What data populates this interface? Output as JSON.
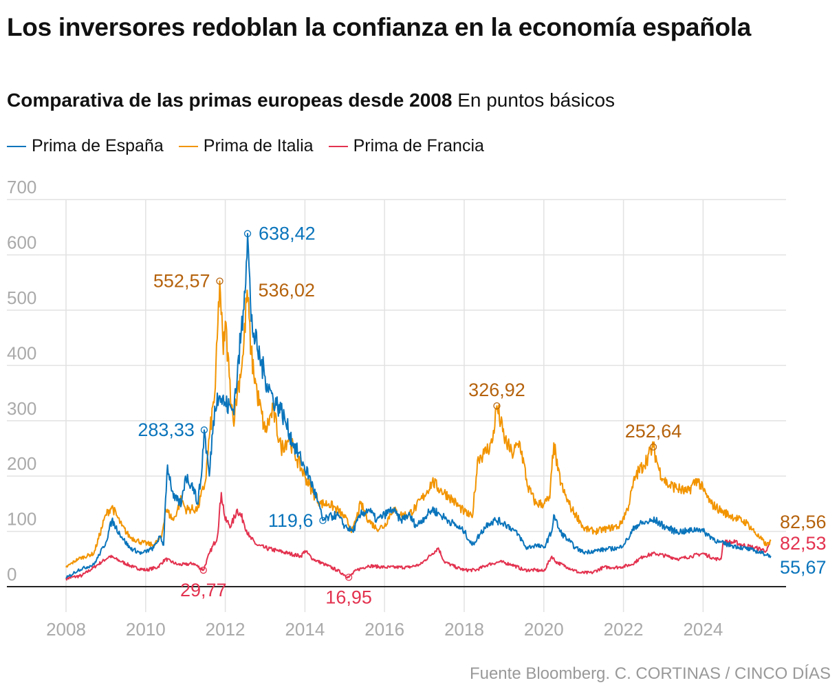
{
  "title": "Los inversores redoblan la confianza en la economía española",
  "subtitle_bold": "Comparativa de las primas europeas desde 2008",
  "subtitle_unit": "En puntos básicos",
  "source": "Fuente Bloomberg. C. CORTINAS / CINCO DÍAS",
  "chart_data": {
    "type": "line",
    "title": "Los inversores redoblan la confianza en la economía española",
    "ylabel": "En puntos básicos",
    "ylim": [
      0,
      700
    ],
    "xlim": [
      2008,
      2026
    ],
    "yticks": [
      0,
      100,
      200,
      300,
      400,
      500,
      600,
      700
    ],
    "xticks": [
      2008,
      2010,
      2012,
      2014,
      2016,
      2018,
      2020,
      2022,
      2024
    ],
    "grid": true,
    "legend": "top-left",
    "series": [
      {
        "name": "Prima de España",
        "color": "#0a74bb",
        "label_color": "#0a74bb",
        "x": [
          2008.0,
          2008.3,
          2008.7,
          2009.0,
          2009.15,
          2009.4,
          2009.6,
          2009.9,
          2010.2,
          2010.35,
          2010.45,
          2010.5,
          2010.55,
          2010.7,
          2010.9,
          2011.0,
          2011.2,
          2011.3,
          2011.4,
          2011.47,
          2011.6,
          2011.7,
          2011.8,
          2011.9,
          2012.0,
          2012.2,
          2012.3,
          2012.45,
          2012.56,
          2012.65,
          2012.8,
          2013.0,
          2013.2,
          2013.4,
          2013.5,
          2013.7,
          2013.9,
          2014.1,
          2014.3,
          2014.45,
          2014.6,
          2014.8,
          2015.0,
          2015.2,
          2015.4,
          2015.6,
          2015.8,
          2016.0,
          2016.2,
          2016.4,
          2016.6,
          2016.8,
          2017.0,
          2017.2,
          2017.4,
          2017.6,
          2017.8,
          2018.0,
          2018.2,
          2018.4,
          2018.6,
          2018.8,
          2019.0,
          2019.2,
          2019.4,
          2019.55,
          2019.8,
          2020.0,
          2020.2,
          2020.25,
          2020.4,
          2020.6,
          2020.8,
          2021.0,
          2021.3,
          2021.6,
          2021.9,
          2022.1,
          2022.3,
          2022.5,
          2022.8,
          2023.0,
          2023.3,
          2023.6,
          2023.9,
          2024.1,
          2024.4,
          2024.7,
          2025.0,
          2025.3,
          2025.7
        ],
        "y": [
          15,
          30,
          40,
          80,
          120,
          90,
          70,
          60,
          70,
          90,
          75,
          160,
          220,
          160,
          150,
          200,
          180,
          150,
          200,
          283.33,
          200,
          300,
          350,
          340,
          330,
          320,
          380,
          500,
          638.42,
          480,
          430,
          380,
          340,
          320,
          300,
          260,
          230,
          200,
          160,
          119.6,
          125,
          130,
          110,
          100,
          130,
          140,
          120,
          130,
          140,
          120,
          130,
          110,
          125,
          140,
          130,
          120,
          110,
          100,
          75,
          95,
          115,
          120,
          115,
          105,
          90,
          70,
          75,
          70,
          100,
          130,
          100,
          85,
          70,
          62,
          65,
          68,
          70,
          85,
          110,
          115,
          120,
          110,
          100,
          100,
          105,
          95,
          80,
          75,
          70,
          65,
          55.67
        ]
      },
      {
        "name": "Prima de Italia",
        "color": "#f29400",
        "label_color": "#b5620c",
        "x": [
          2008.0,
          2008.3,
          2008.7,
          2009.0,
          2009.15,
          2009.4,
          2009.6,
          2009.9,
          2010.2,
          2010.4,
          2010.5,
          2010.7,
          2010.9,
          2011.0,
          2011.3,
          2011.5,
          2011.6,
          2011.75,
          2011.86,
          2011.95,
          2012.0,
          2012.1,
          2012.2,
          2012.3,
          2012.45,
          2012.55,
          2012.65,
          2012.8,
          2013.0,
          2013.2,
          2013.4,
          2013.6,
          2013.8,
          2014.0,
          2014.2,
          2014.4,
          2014.6,
          2014.8,
          2015.0,
          2015.2,
          2015.4,
          2015.6,
          2015.8,
          2016.0,
          2016.2,
          2016.4,
          2016.6,
          2016.8,
          2017.0,
          2017.2,
          2017.4,
          2017.6,
          2017.8,
          2018.0,
          2018.2,
          2018.35,
          2018.5,
          2018.7,
          2018.82,
          2019.0,
          2019.2,
          2019.4,
          2019.6,
          2019.8,
          2020.0,
          2020.15,
          2020.25,
          2020.35,
          2020.5,
          2020.7,
          2020.9,
          2021.0,
          2021.3,
          2021.6,
          2021.9,
          2022.1,
          2022.3,
          2022.5,
          2022.75,
          2022.9,
          2023.1,
          2023.3,
          2023.6,
          2023.85,
          2024.0,
          2024.2,
          2024.5,
          2024.8,
          2025.1,
          2025.4,
          2025.6,
          2025.7
        ],
        "y": [
          35,
          50,
          60,
          130,
          145,
          110,
          90,
          80,
          75,
          90,
          140,
          120,
          160,
          140,
          140,
          190,
          270,
          360,
          552.57,
          420,
          480,
          380,
          300,
          350,
          420,
          536.02,
          420,
          350,
          280,
          320,
          250,
          270,
          230,
          200,
          170,
          150,
          150,
          140,
          125,
          100,
          150,
          120,
          105,
          110,
          140,
          130,
          130,
          145,
          165,
          190,
          175,
          165,
          150,
          135,
          125,
          235,
          240,
          260,
          326.92,
          270,
          240,
          260,
          180,
          150,
          150,
          160,
          260,
          210,
          170,
          140,
          120,
          105,
          100,
          105,
          110,
          140,
          200,
          220,
          252.64,
          210,
          185,
          180,
          170,
          195,
          175,
          150,
          135,
          125,
          115,
          90,
          75,
          82.56
        ]
      },
      {
        "name": "Prima de Francia",
        "color": "#e3324f",
        "label_color": "#e3324f",
        "x": [
          2008.0,
          2008.4,
          2008.8,
          2009.1,
          2009.4,
          2009.7,
          2010.0,
          2010.3,
          2010.5,
          2010.8,
          2011.0,
          2011.2,
          2011.45,
          2011.6,
          2011.8,
          2011.9,
          2012.0,
          2012.15,
          2012.3,
          2012.45,
          2012.6,
          2012.8,
          2013.0,
          2013.3,
          2013.6,
          2013.9,
          2014.0,
          2014.2,
          2014.5,
          2014.8,
          2015.1,
          2015.3,
          2015.6,
          2016.0,
          2016.3,
          2016.6,
          2016.9,
          2017.2,
          2017.35,
          2017.5,
          2017.8,
          2018.0,
          2018.3,
          2018.6,
          2018.9,
          2019.2,
          2019.5,
          2019.8,
          2020.0,
          2020.2,
          2020.3,
          2020.6,
          2020.9,
          2021.2,
          2021.5,
          2021.9,
          2022.2,
          2022.5,
          2022.8,
          2023.1,
          2023.4,
          2023.7,
          2024.0,
          2024.3,
          2024.45,
          2024.5,
          2024.8,
          2025.0,
          2025.3,
          2025.6,
          2025.7
        ],
        "y": [
          15,
          20,
          40,
          55,
          45,
          35,
          30,
          35,
          50,
          40,
          40,
          42,
          29.77,
          60,
          90,
          170,
          120,
          110,
          140,
          120,
          90,
          75,
          70,
          65,
          60,
          55,
          65,
          50,
          40,
          30,
          16.95,
          30,
          38,
          35,
          35,
          35,
          40,
          60,
          70,
          45,
          35,
          30,
          30,
          40,
          45,
          40,
          30,
          30,
          28,
          55,
          45,
          35,
          25,
          25,
          35,
          35,
          40,
          55,
          60,
          55,
          50,
          55,
          60,
          50,
          50,
          80,
          80,
          75,
          70,
          65,
          82.53
        ]
      }
    ],
    "annotations": [
      {
        "series": 0,
        "x": 2011.47,
        "y": 283.33,
        "text": "283,33",
        "place": "left",
        "marker": true
      },
      {
        "series": 0,
        "x": 2012.56,
        "y": 638.42,
        "text": "638,42",
        "place": "right",
        "marker": true
      },
      {
        "series": 0,
        "x": 2014.45,
        "y": 119.6,
        "text": "119,6",
        "place": "left",
        "marker": true
      },
      {
        "series": 1,
        "x": 2011.86,
        "y": 552.57,
        "text": "552,57",
        "place": "left",
        "marker": true
      },
      {
        "series": 1,
        "x": 2012.55,
        "y": 536.02,
        "text": "536,02",
        "place": "right",
        "marker": false
      },
      {
        "series": 1,
        "x": 2018.82,
        "y": 326.92,
        "text": "326,92",
        "place": "above",
        "marker": true
      },
      {
        "series": 1,
        "x": 2022.75,
        "y": 252.64,
        "text": "252,64",
        "place": "above",
        "marker": true
      },
      {
        "series": 2,
        "x": 2011.45,
        "y": 29.77,
        "text": "29,77",
        "place": "below",
        "marker": true
      },
      {
        "series": 2,
        "x": 2015.1,
        "y": 16.95,
        "text": "16,95",
        "place": "below",
        "marker": true
      }
    ],
    "end_labels": [
      {
        "series": 1,
        "text": "82,56"
      },
      {
        "series": 2,
        "text": "82,53"
      },
      {
        "series": 0,
        "text": "55,67"
      }
    ]
  }
}
